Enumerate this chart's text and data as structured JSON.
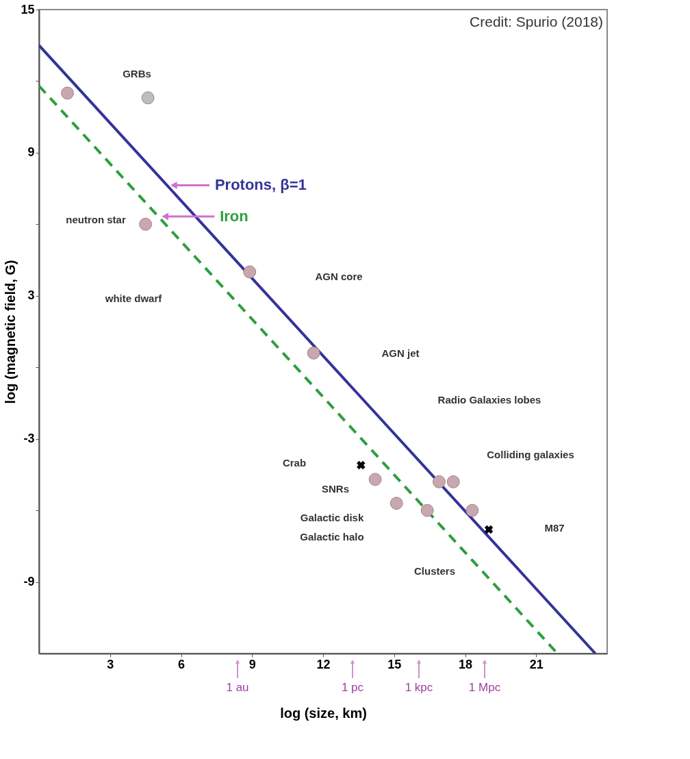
{
  "chart_data": {
    "type": "scatter",
    "xlabel": "log (size, km)",
    "ylabel": "log (magnetic field, G)",
    "xlim": [
      0,
      24
    ],
    "ylim": [
      -12,
      15
    ],
    "xticks": [
      3,
      6,
      9,
      12,
      15,
      18,
      21
    ],
    "yticks": [
      15,
      {
        "value": 12,
        "label": null
      },
      9,
      {
        "value": 6,
        "label": null
      },
      3,
      {
        "value": 0,
        "label": null
      },
      -3,
      {
        "value": -6,
        "label": null
      },
      -9
    ],
    "series": [
      {
        "name": "Protons, β=1",
        "type": "line",
        "color": "#33339a",
        "line_style": "solid",
        "x": [
          0,
          23.5
        ],
        "values": [
          13.5,
          -12
        ]
      },
      {
        "name": "Iron",
        "type": "line",
        "color": "#2e9e3e",
        "line_style": "dashed",
        "x": [
          0,
          21.9
        ],
        "values": [
          11.8,
          -12
        ]
      },
      {
        "marker": "circle",
        "colors": [
          "#c8a8ae",
          "#bdbdbd",
          "#c8a8ae",
          "#c8a8ae",
          "#c8a8ae",
          "#c8a8ae",
          "#c8a8ae",
          "#c8a8ae",
          "#c8a8ae",
          "#c8a8ae",
          "#c8a8ae"
        ],
        "x": [
          1.2,
          4.6,
          4.5,
          8.9,
          11.6,
          14.2,
          15.1,
          16.4,
          16.9,
          17.5,
          18.3
        ],
        "values": [
          11.5,
          11.3,
          6.0,
          4.0,
          0.6,
          -4.7,
          -5.7,
          -6.0,
          -4.8,
          -4.8,
          -6.0
        ]
      },
      {
        "marker": "cross",
        "color": "#000000",
        "x": [
          13.6,
          19.0
        ],
        "values": [
          -4.1,
          -6.8
        ]
      }
    ],
    "annotations": [
      "neutron star",
      "GRBs",
      "white dwarf",
      "AGN core",
      "AGN jet",
      "Crab",
      "SNRs",
      "Galactic disk",
      "Galactic halo",
      "Radio Galaxies lobes",
      "Colliding galaxies",
      "Clusters",
      "M87",
      "1 au",
      "1 pc",
      "1 kpc",
      "1 Mpc",
      "Credit: Spurio (2018)"
    ]
  }
}
